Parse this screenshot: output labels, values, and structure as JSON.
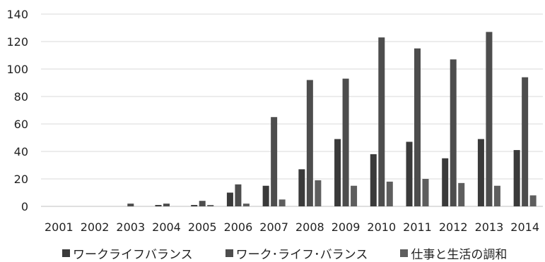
{
  "chart_data": {
    "type": "bar",
    "categories": [
      "2001",
      "2002",
      "2003",
      "2004",
      "2005",
      "2006",
      "2007",
      "2008",
      "2009",
      "2010",
      "2011",
      "2012",
      "2013",
      "2014"
    ],
    "series": [
      {
        "name": "ワークライフバランス",
        "color": "#3a3a3a",
        "values": [
          0,
          0,
          0,
          1,
          1,
          10,
          15,
          27,
          49,
          38,
          47,
          35,
          49,
          41
        ]
      },
      {
        "name": "ワーク･ライフ･バランス",
        "color": "#4d4d4d",
        "values": [
          0,
          0,
          2,
          2,
          4,
          16,
          65,
          92,
          93,
          123,
          115,
          107,
          127,
          94
        ]
      },
      {
        "name": "仕事と生活の調和",
        "color": "#5e5e5e",
        "values": [
          0,
          0,
          0,
          0,
          1,
          2,
          5,
          19,
          15,
          18,
          20,
          17,
          15,
          8
        ]
      }
    ],
    "y_ticks": [
      "0",
      "20",
      "40",
      "60",
      "80",
      "100",
      "120",
      "140"
    ],
    "ylim": [
      0,
      140
    ],
    "grid": true,
    "legend_position": "bottom"
  }
}
